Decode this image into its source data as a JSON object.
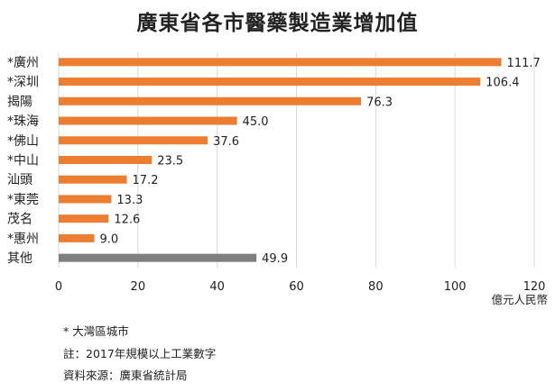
{
  "chart_data": {
    "type": "bar",
    "orientation": "horizontal",
    "title": "廣東省各市醫藥製造業增加值",
    "categories": [
      "*廣州",
      "*深圳",
      "揭陽",
      "*珠海",
      "*佛山",
      "*中山",
      "汕頭",
      "*東莞",
      "茂名",
      "*惠州",
      "其他"
    ],
    "values": [
      111.7,
      106.4,
      76.3,
      45.0,
      37.6,
      23.5,
      17.2,
      13.3,
      12.6,
      9.0,
      49.9
    ],
    "value_labels": [
      "111.7",
      "106.4",
      "76.3",
      "45.0",
      "37.6",
      "23.5",
      "17.2",
      "13.3",
      "12.6",
      "9.0",
      "49.9"
    ],
    "xlim": [
      0,
      120
    ],
    "x_ticks": [
      "0",
      "20",
      "40",
      "60",
      "80",
      "100",
      "120"
    ],
    "x_unit": "億元人民幣",
    "grid": true,
    "colors": {
      "bar": "#ed7d31",
      "other_bar": "#7f7f7f",
      "grid": "#d9d9d9"
    }
  },
  "notes": {
    "bay_area": "* 大灣區城市",
    "year_note": "註：2017年規模以上工業數字",
    "source": "資料來源：廣東省統計局"
  }
}
